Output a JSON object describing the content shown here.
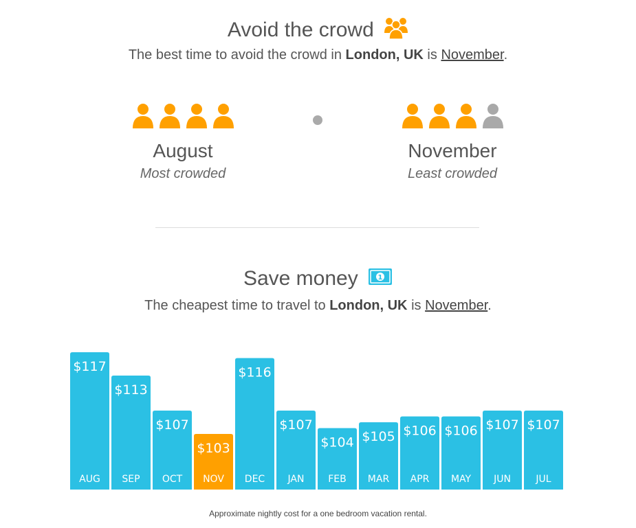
{
  "crowd": {
    "title": "Avoid the crowd",
    "title_icon": "people-group-icon",
    "subtitle": {
      "prefix": "The best time to avoid the crowd in",
      "place": "London, UK",
      "mid": "is",
      "month": "November",
      "suffix": "."
    },
    "most": {
      "month": "August",
      "label": "Most crowded",
      "level": 4,
      "max": 4
    },
    "least": {
      "month": "November",
      "label": "Least crowded",
      "level": 3,
      "max": 4
    },
    "colors": {
      "active": "#FFA000",
      "inactive": "#A9A9A9"
    }
  },
  "money": {
    "title": "Save money",
    "title_icon": "money-bill-icon",
    "subtitle": {
      "prefix": "The cheapest time to travel to",
      "place": "London, UK",
      "mid": "is",
      "month": "November",
      "suffix": "."
    },
    "note": "Approximate nightly cost for a one bedroom vacation rental."
  },
  "chart_data": {
    "type": "bar",
    "categories": [
      "AUG",
      "SEP",
      "OCT",
      "NOV",
      "DEC",
      "JAN",
      "FEB",
      "MAR",
      "APR",
      "MAY",
      "JUN",
      "JUL"
    ],
    "values": [
      117,
      113,
      107,
      103,
      116,
      107,
      104,
      105,
      106,
      106,
      107,
      107
    ],
    "value_labels": [
      "$117",
      "$113",
      "$107",
      "$103",
      "$116",
      "$107",
      "$104",
      "$105",
      "$106",
      "$106",
      "$107",
      "$107"
    ],
    "highlight": "NOV",
    "colors": {
      "bar": "#2BC0E4",
      "highlight": "#FFA000"
    },
    "title": "",
    "xlabel": "",
    "ylabel": "",
    "grid": false
  }
}
